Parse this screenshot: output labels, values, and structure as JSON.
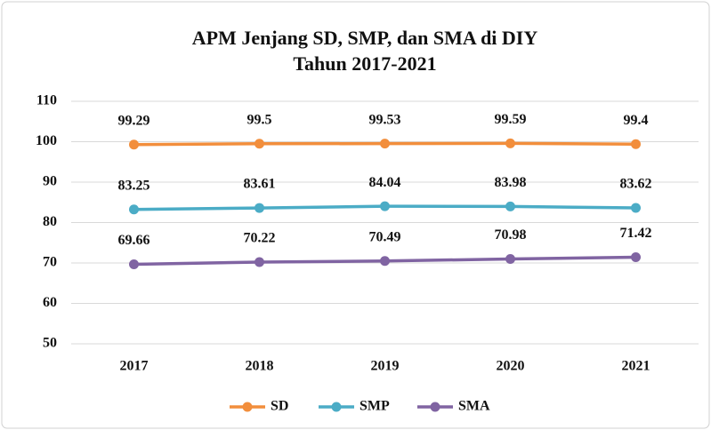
{
  "chart_data": {
    "type": "line",
    "title": "APM Jenjang SD, SMP, dan SMA di DIY",
    "subtitle": "Tahun 2017-2021",
    "categories": [
      "2017",
      "2018",
      "2019",
      "2020",
      "2021"
    ],
    "series": [
      {
        "name": "SD",
        "color": "#f28e3c",
        "values": [
          99.29,
          99.5,
          99.53,
          99.59,
          99.4
        ]
      },
      {
        "name": "SMP",
        "color": "#4bacc6",
        "values": [
          83.25,
          83.61,
          84.04,
          83.98,
          83.62
        ]
      },
      {
        "name": "SMA",
        "color": "#8064a2",
        "values": [
          69.66,
          70.22,
          70.49,
          70.98,
          71.42
        ]
      }
    ],
    "ylim": [
      50,
      110
    ],
    "yticks": [
      50,
      60,
      70,
      80,
      90,
      100,
      110
    ],
    "grid": true,
    "legend": "bottom"
  }
}
